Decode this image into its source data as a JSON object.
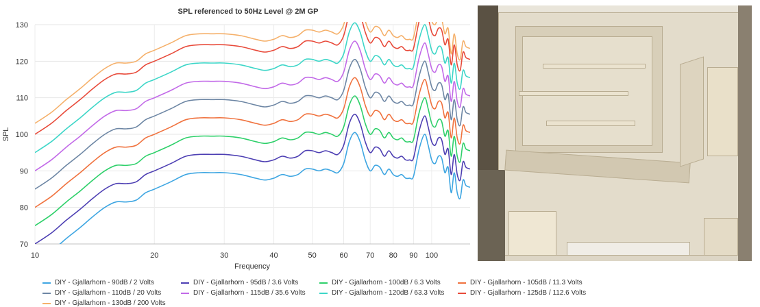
{
  "chart_data": {
    "type": "line",
    "title": "SPL referenced to 50Hz Level @ 2M GP",
    "xlabel": "Frequency",
    "ylabel": "SPL",
    "x_scale": "log",
    "xlim": [
      10,
      125
    ],
    "ylim": [
      70,
      130
    ],
    "x_ticks": [
      10,
      20,
      30,
      40,
      50,
      60,
      70,
      80,
      90,
      100
    ],
    "y_ticks": [
      70,
      80,
      90,
      100,
      110,
      120,
      130
    ],
    "grid": true,
    "legend_position": "bottom",
    "series": [
      {
        "name": "DIY - Gjallarhorn - 90dB / 2 Volts",
        "color": "#3ea6e2",
        "offset": 0
      },
      {
        "name": "DIY - Gjallarhorn - 95dB / 3.6 Volts",
        "color": "#4d3fb3",
        "offset": 5
      },
      {
        "name": "DIY - Gjallarhorn - 100dB / 6.3 Volts",
        "color": "#2ed06a",
        "offset": 10
      },
      {
        "name": "DIY - Gjallarhorn - 105dB / 11.3 Volts",
        "color": "#f0723e",
        "offset": 15
      },
      {
        "name": "DIY - Gjallarhorn - 110dB / 20 Volts",
        "color": "#6d86a4",
        "offset": 20
      },
      {
        "name": "DIY - Gjallarhorn - 115dB / 35.6 Volts",
        "color": "#c26ae8",
        "offset": 25
      },
      {
        "name": "DIY - Gjallarhorn - 120dB / 63.3 Volts",
        "color": "#3dd6c8",
        "offset": 30
      },
      {
        "name": "DIY - Gjallarhorn - 125dB / 112.6 Volts",
        "color": "#e84a3a",
        "offset": 35
      },
      {
        "name": "DIY - Gjallarhorn - 130dB / 200 Volts",
        "color": "#f5b06a",
        "offset": 38
      }
    ],
    "base_curve": {
      "x": [
        10,
        11,
        12,
        13,
        14,
        15,
        16,
        17,
        18,
        19,
        20,
        22,
        24,
        26,
        28,
        30,
        33,
        36,
        38,
        40,
        42,
        44,
        46,
        48,
        50,
        52,
        54,
        56,
        58,
        60,
        62,
        64,
        66,
        68,
        70,
        72,
        74,
        76,
        78,
        80,
        82,
        84,
        86,
        88,
        90,
        93,
        96,
        98,
        100,
        102,
        104,
        106,
        108,
        110,
        112,
        114,
        116,
        118,
        120,
        122,
        125
      ],
      "y": [
        65,
        68,
        71.5,
        74.5,
        77.5,
        80,
        81.5,
        81.5,
        82,
        84,
        85,
        87,
        89,
        89.5,
        89.5,
        89.5,
        89,
        88,
        87.5,
        88,
        89,
        88.5,
        89,
        90.5,
        90.5,
        90,
        90.5,
        90,
        89.5,
        92,
        98,
        100.5,
        98,
        93,
        90,
        91.5,
        91,
        89,
        90.5,
        89,
        88.5,
        89,
        88,
        88,
        88.5,
        96,
        100,
        97,
        93,
        92,
        94,
        93.5,
        89.5,
        91,
        84,
        89.5,
        84,
        82.5,
        87.5,
        86,
        85.5
      ]
    }
  },
  "photo": {
    "icon": "speaker-cabinet-photo"
  }
}
